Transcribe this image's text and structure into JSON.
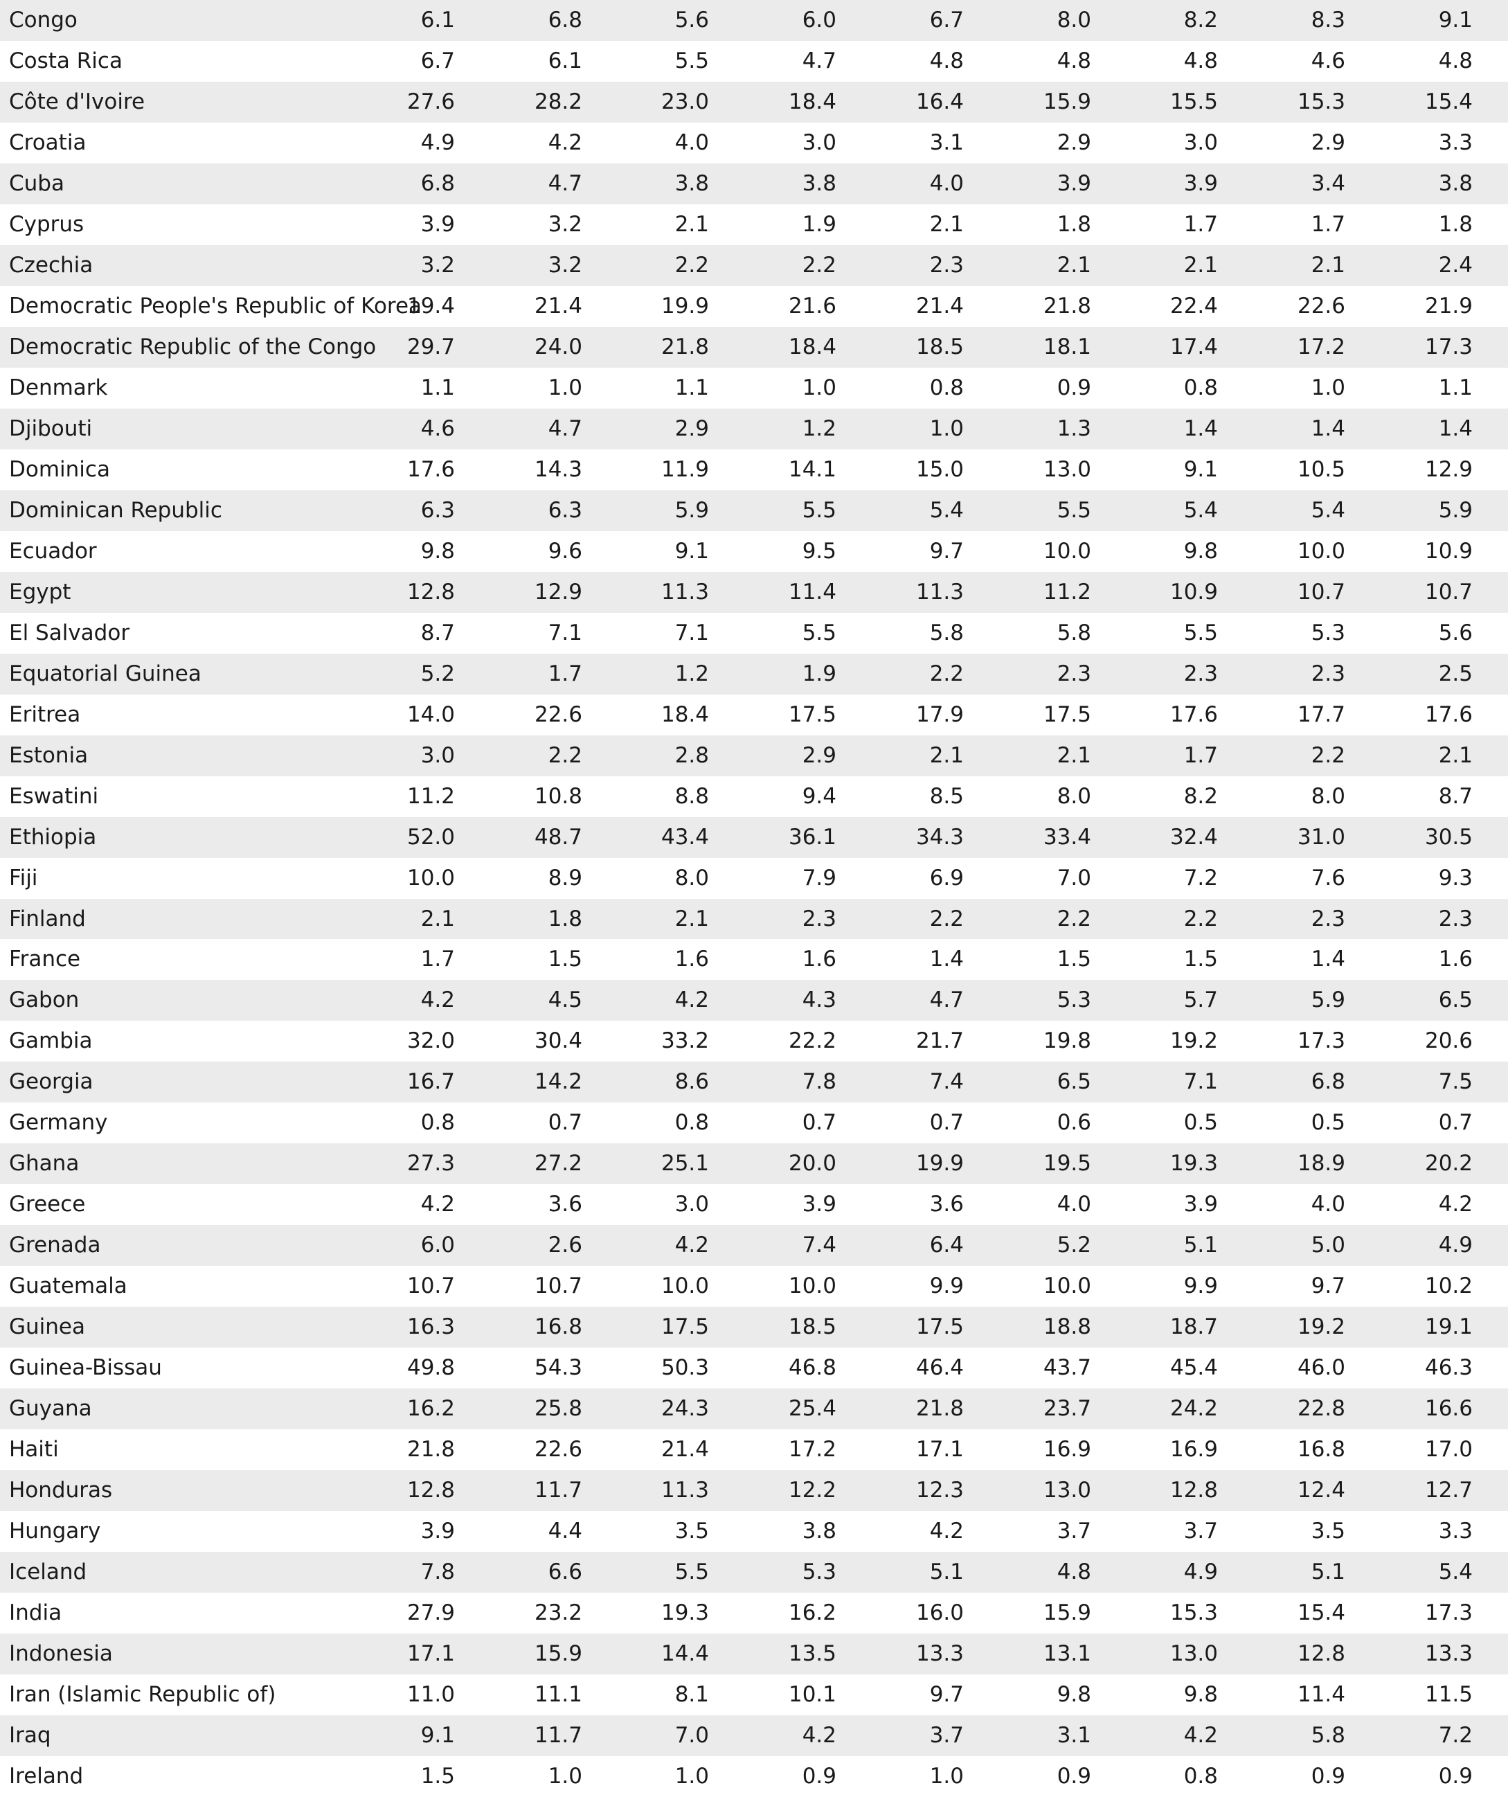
{
  "table": {
    "rows": [
      [
        "Congo",
        "6.1",
        "6.8",
        "5.6",
        "6.0",
        "6.7",
        "8.0",
        "8.2",
        "8.3",
        "9.1"
      ],
      [
        "Costa Rica",
        "6.7",
        "6.1",
        "5.5",
        "4.7",
        "4.8",
        "4.8",
        "4.8",
        "4.6",
        "4.8"
      ],
      [
        "Côte d'Ivoire",
        "27.6",
        "28.2",
        "23.0",
        "18.4",
        "16.4",
        "15.9",
        "15.5",
        "15.3",
        "15.4"
      ],
      [
        "Croatia",
        "4.9",
        "4.2",
        "4.0",
        "3.0",
        "3.1",
        "2.9",
        "3.0",
        "2.9",
        "3.3"
      ],
      [
        "Cuba",
        "6.8",
        "4.7",
        "3.8",
        "3.8",
        "4.0",
        "3.9",
        "3.9",
        "3.4",
        "3.8"
      ],
      [
        "Cyprus",
        "3.9",
        "3.2",
        "2.1",
        "1.9",
        "2.1",
        "1.8",
        "1.7",
        "1.7",
        "1.8"
      ],
      [
        "Czechia",
        "3.2",
        "3.2",
        "2.2",
        "2.2",
        "2.3",
        "2.1",
        "2.1",
        "2.1",
        "2.4"
      ],
      [
        "Democratic People's Republic of Korea",
        "19.4",
        "21.4",
        "19.9",
        "21.6",
        "21.4",
        "21.8",
        "22.4",
        "22.6",
        "21.9"
      ],
      [
        "Democratic Republic of the Congo",
        "29.7",
        "24.0",
        "21.8",
        "18.4",
        "18.5",
        "18.1",
        "17.4",
        "17.2",
        "17.3"
      ],
      [
        "Denmark",
        "1.1",
        "1.0",
        "1.1",
        "1.0",
        "0.8",
        "0.9",
        "0.8",
        "1.0",
        "1.1"
      ],
      [
        "Djibouti",
        "4.6",
        "4.7",
        "2.9",
        "1.2",
        "1.0",
        "1.3",
        "1.4",
        "1.4",
        "1.4"
      ],
      [
        "Dominica",
        "17.6",
        "14.3",
        "11.9",
        "14.1",
        "15.0",
        "13.0",
        "9.1",
        "10.5",
        "12.9"
      ],
      [
        "Dominican Republic",
        "6.3",
        "6.3",
        "5.9",
        "5.5",
        "5.4",
        "5.5",
        "5.4",
        "5.4",
        "5.9"
      ],
      [
        "Ecuador",
        "9.8",
        "9.6",
        "9.1",
        "9.5",
        "9.7",
        "10.0",
        "9.8",
        "10.0",
        "10.9"
      ],
      [
        "Egypt",
        "12.8",
        "12.9",
        "11.3",
        "11.4",
        "11.3",
        "11.2",
        "10.9",
        "10.7",
        "10.7"
      ],
      [
        "El Salvador",
        "8.7",
        "7.1",
        "7.1",
        "5.5",
        "5.8",
        "5.8",
        "5.5",
        "5.3",
        "5.6"
      ],
      [
        "Equatorial Guinea",
        "5.2",
        "1.7",
        "1.2",
        "1.9",
        "2.2",
        "2.3",
        "2.3",
        "2.3",
        "2.5"
      ],
      [
        "Eritrea",
        "14.0",
        "22.6",
        "18.4",
        "17.5",
        "17.9",
        "17.5",
        "17.6",
        "17.7",
        "17.6"
      ],
      [
        "Estonia",
        "3.0",
        "2.2",
        "2.8",
        "2.9",
        "2.1",
        "2.1",
        "1.7",
        "2.2",
        "2.1"
      ],
      [
        "Eswatini",
        "11.2",
        "10.8",
        "8.8",
        "9.4",
        "8.5",
        "8.0",
        "8.2",
        "8.0",
        "8.7"
      ],
      [
        "Ethiopia",
        "52.0",
        "48.7",
        "43.4",
        "36.1",
        "34.3",
        "33.4",
        "32.4",
        "31.0",
        "30.5"
      ],
      [
        "Fiji",
        "10.0",
        "8.9",
        "8.0",
        "7.9",
        "6.9",
        "7.0",
        "7.2",
        "7.6",
        "9.3"
      ],
      [
        "Finland",
        "2.1",
        "1.8",
        "2.1",
        "2.3",
        "2.2",
        "2.2",
        "2.2",
        "2.3",
        "2.3"
      ],
      [
        "France",
        "1.7",
        "1.5",
        "1.6",
        "1.6",
        "1.4",
        "1.5",
        "1.5",
        "1.4",
        "1.6"
      ],
      [
        "Gabon",
        "4.2",
        "4.5",
        "4.2",
        "4.3",
        "4.7",
        "5.3",
        "5.7",
        "5.9",
        "6.5"
      ],
      [
        "Gambia",
        "32.0",
        "30.4",
        "33.2",
        "22.2",
        "21.7",
        "19.8",
        "19.2",
        "17.3",
        "20.6"
      ],
      [
        "Georgia",
        "16.7",
        "14.2",
        "8.6",
        "7.8",
        "7.4",
        "6.5",
        "7.1",
        "6.8",
        "7.5"
      ],
      [
        "Germany",
        "0.8",
        "0.7",
        "0.8",
        "0.7",
        "0.7",
        "0.6",
        "0.5",
        "0.5",
        "0.7"
      ],
      [
        "Ghana",
        "27.3",
        "27.2",
        "25.1",
        "20.0",
        "19.9",
        "19.5",
        "19.3",
        "18.9",
        "20.2"
      ],
      [
        "Greece",
        "4.2",
        "3.6",
        "3.0",
        "3.9",
        "3.6",
        "4.0",
        "3.9",
        "4.0",
        "4.2"
      ],
      [
        "Grenada",
        "6.0",
        "2.6",
        "4.2",
        "7.4",
        "6.4",
        "5.2",
        "5.1",
        "5.0",
        "4.9"
      ],
      [
        "Guatemala",
        "10.7",
        "10.7",
        "10.0",
        "10.0",
        "9.9",
        "10.0",
        "9.9",
        "9.7",
        "10.2"
      ],
      [
        "Guinea",
        "16.3",
        "16.8",
        "17.5",
        "18.5",
        "17.5",
        "18.8",
        "18.7",
        "19.2",
        "19.1"
      ],
      [
        "Guinea-Bissau",
        "49.8",
        "54.3",
        "50.3",
        "46.8",
        "46.4",
        "43.7",
        "45.4",
        "46.0",
        "46.3"
      ],
      [
        "Guyana",
        "16.2",
        "25.8",
        "24.3",
        "25.4",
        "21.8",
        "23.7",
        "24.2",
        "22.8",
        "16.6"
      ],
      [
        "Haiti",
        "21.8",
        "22.6",
        "21.4",
        "17.2",
        "17.1",
        "16.9",
        "16.9",
        "16.8",
        "17.0"
      ],
      [
        "Honduras",
        "12.8",
        "11.7",
        "11.3",
        "12.2",
        "12.3",
        "13.0",
        "12.8",
        "12.4",
        "12.7"
      ],
      [
        "Hungary",
        "3.9",
        "4.4",
        "3.5",
        "3.8",
        "4.2",
        "3.7",
        "3.7",
        "3.5",
        "3.3"
      ],
      [
        "Iceland",
        "7.8",
        "6.6",
        "5.5",
        "5.3",
        "5.1",
        "4.8",
        "4.9",
        "5.1",
        "5.4"
      ],
      [
        "India",
        "27.9",
        "23.2",
        "19.3",
        "16.2",
        "16.0",
        "15.9",
        "15.3",
        "15.4",
        "17.3"
      ],
      [
        "Indonesia",
        "17.1",
        "15.9",
        "14.4",
        "13.5",
        "13.3",
        "13.1",
        "13.0",
        "12.8",
        "13.3"
      ],
      [
        "Iran (Islamic Republic of)",
        "11.0",
        "11.1",
        "8.1",
        "10.1",
        "9.7",
        "9.8",
        "9.8",
        "11.4",
        "11.5"
      ],
      [
        "Iraq",
        "9.1",
        "11.7",
        "7.0",
        "4.2",
        "3.7",
        "3.1",
        "4.2",
        "5.8",
        "7.2"
      ],
      [
        "Ireland",
        "1.5",
        "1.0",
        "1.0",
        "0.9",
        "1.0",
        "0.9",
        "0.8",
        "0.9",
        "0.9"
      ]
    ]
  }
}
